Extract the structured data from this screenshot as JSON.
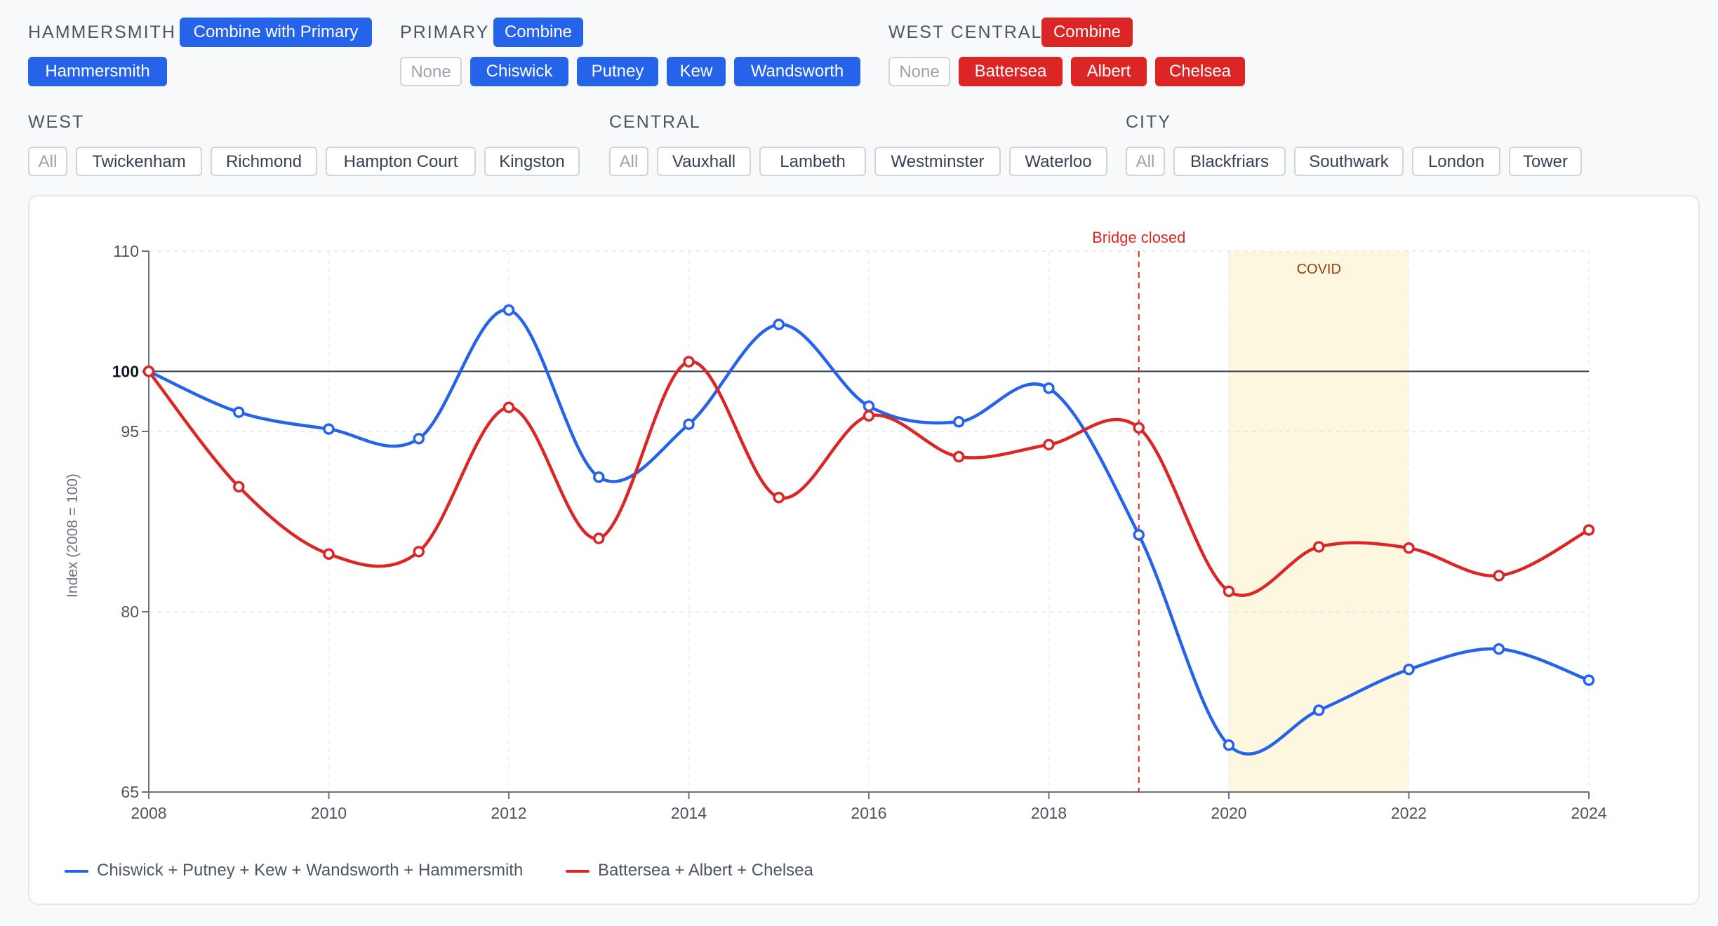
{
  "filters": {
    "hammersmith": {
      "label": "HAMMERSMITH",
      "combine": "Combine with Primary",
      "items": [
        "Hammersmith"
      ]
    },
    "primary": {
      "label": "PRIMARY",
      "combine": "Combine",
      "none": "None",
      "items": [
        "Chiswick",
        "Putney",
        "Kew",
        "Wandsworth"
      ]
    },
    "west_central": {
      "label": "WEST CENTRAL",
      "combine": "Combine",
      "none": "None",
      "items": [
        "Battersea",
        "Albert",
        "Chelsea"
      ]
    },
    "west": {
      "label": "WEST",
      "all": "All",
      "items": [
        "Twickenham",
        "Richmond",
        "Hampton Court",
        "Kingston"
      ]
    },
    "central": {
      "label": "CENTRAL",
      "all": "All",
      "items": [
        "Vauxhall",
        "Lambeth",
        "Westminster",
        "Waterloo"
      ]
    },
    "city": {
      "label": "CITY",
      "all": "All",
      "items": [
        "Blackfriars",
        "Southwark",
        "London",
        "Tower"
      ]
    }
  },
  "colors": {
    "blue": "#2563eb",
    "red": "#dc2626",
    "covid": "#fef7e0"
  },
  "chart_data": {
    "type": "line",
    "title": "",
    "xlabel": "",
    "ylabel": "Index (2008 = 100)",
    "x": [
      2008,
      2009,
      2010,
      2011,
      2012,
      2013,
      2014,
      2015,
      2016,
      2017,
      2018,
      2019,
      2020,
      2021,
      2022,
      2023,
      2024
    ],
    "xlim": [
      2008,
      2024
    ],
    "ylim": [
      65,
      110
    ],
    "x_ticks": [
      "2008",
      "2010",
      "2012",
      "2014",
      "2016",
      "2018",
      "2020",
      "2022",
      "2024"
    ],
    "y_ticks": [
      "65",
      "80",
      "95",
      "100",
      "110"
    ],
    "reference_line": {
      "y": 100,
      "label": "100"
    },
    "annotations": [
      {
        "type": "vline",
        "x": 2019,
        "label": "Bridge closed"
      },
      {
        "type": "band",
        "x_start": 2020,
        "x_end": 2022,
        "label": "COVID"
      }
    ],
    "series": [
      {
        "name": "Chiswick + Putney + Kew + Wandsworth + Hammersmith",
        "color": "#2563eb",
        "values": [
          100,
          96.6,
          95.2,
          94.4,
          105.1,
          91.2,
          95.6,
          103.9,
          97.1,
          95.8,
          98.6,
          86.4,
          68.9,
          71.8,
          75.2,
          76.9,
          74.3
        ]
      },
      {
        "name": "Battersea + Albert + Chelsea",
        "color": "#dc2626",
        "values": [
          100,
          90.4,
          84.8,
          85.0,
          97.0,
          86.1,
          100.8,
          89.5,
          96.3,
          92.9,
          93.9,
          95.3,
          81.7,
          85.4,
          85.3,
          83.0,
          86.8
        ]
      }
    ],
    "grid": true,
    "legend_position": "bottom-left"
  }
}
